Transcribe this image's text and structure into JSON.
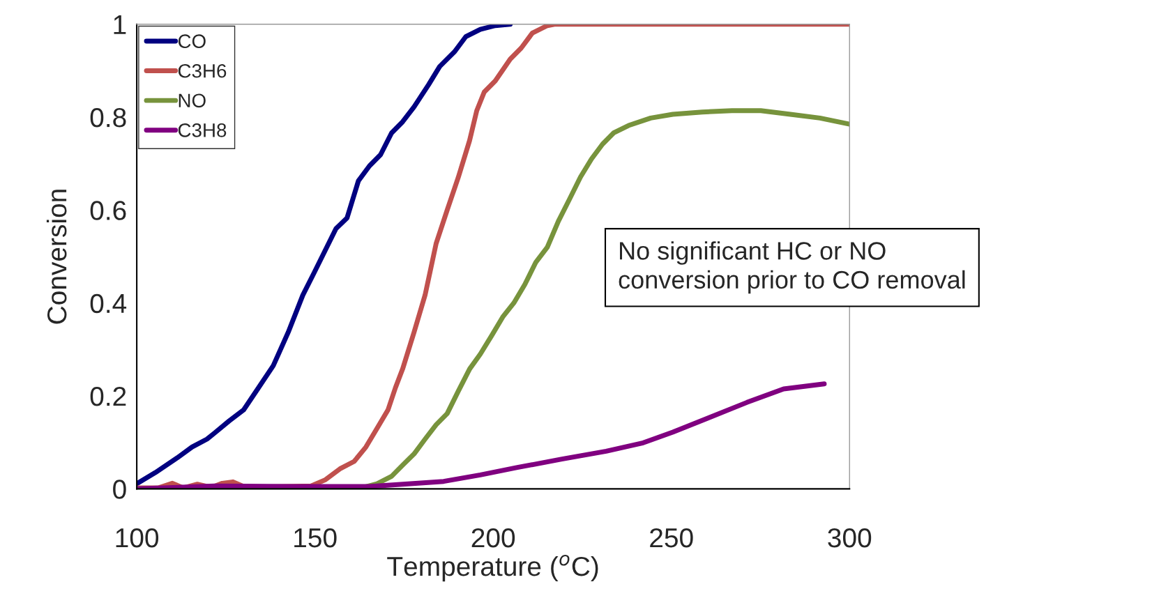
{
  "chart_data": {
    "type": "line",
    "xlabel": "Temperature ($^{o}$C)",
    "ylabel": "Conversion",
    "xlim": [
      100,
      300
    ],
    "xticks": [
      100,
      150,
      200,
      250,
      300
    ],
    "ylim": [
      0,
      1
    ],
    "yticks": [
      0,
      0.2,
      0.4,
      0.6,
      0.8,
      1
    ],
    "grid": false,
    "legend": "top left",
    "line_style": "solid",
    "annotations": [
      "No significant HC or NO\nconversion prior to CO removal"
    ],
    "series": [
      {
        "name": "CO",
        "color": "#000080",
        "x": [
          100,
          105.2,
          111.4,
          115.5,
          119.7,
          121.8,
          125.9,
          130,
          134.2,
          138.3,
          142.5,
          146.6,
          149.7,
          152.8,
          155.9,
          159,
          162.2,
          165.3,
          168.4,
          171.5,
          174.6,
          177.8,
          181.9,
          185,
          189.2,
          192.3,
          196.4,
          200.6,
          204.8
        ],
        "values": [
          0.011,
          0.035,
          0.067,
          0.09,
          0.107,
          0.12,
          0.146,
          0.17,
          0.218,
          0.265,
          0.337,
          0.417,
          0.464,
          0.512,
          0.56,
          0.583,
          0.663,
          0.695,
          0.719,
          0.766,
          0.79,
          0.822,
          0.87,
          0.909,
          0.941,
          0.973,
          0.989,
          0.997,
          1
        ]
      },
      {
        "name": "C3H6",
        "color": "#c0504d",
        "x": [
          100,
          106,
          110,
          113,
          117,
          121,
          124,
          127,
          130,
          135,
          148.8,
          152.8,
          157,
          161,
          164.3,
          167.4,
          170.5,
          172.6,
          174.6,
          177.8,
          180.9,
          184,
          187.1,
          190.2,
          193.4,
          195.4,
          197.5,
          200.6,
          204.8,
          207.9,
          211,
          215.2,
          217.2,
          300
        ],
        "values": [
          0.002,
          0.002,
          0.012,
          0.002,
          0.01,
          0.003,
          0.012,
          0.015,
          0.005,
          0.004,
          0.006,
          0.019,
          0.043,
          0.059,
          0.09,
          0.13,
          0.17,
          0.218,
          0.258,
          0.337,
          0.417,
          0.528,
          0.6,
          0.67,
          0.75,
          0.814,
          0.854,
          0.878,
          0.925,
          0.949,
          0.981,
          0.997,
          1,
          1
        ]
      },
      {
        "name": "NO",
        "color": "#77933c",
        "x": [
          100,
          162,
          167.4,
          171.5,
          174.6,
          177.8,
          180.9,
          184,
          187.1,
          190.2,
          193.4,
          196.4,
          199.6,
          202.7,
          205.8,
          208.9,
          212,
          215.2,
          218.3,
          221.4,
          224.5,
          227.6,
          230.7,
          233.8,
          238,
          244.2,
          250.4,
          258.7,
          267,
          275.1,
          283.4,
          291.7,
          300
        ],
        "values": [
          0,
          0,
          0.011,
          0.027,
          0.051,
          0.075,
          0.107,
          0.138,
          0.162,
          0.21,
          0.258,
          0.29,
          0.33,
          0.37,
          0.4,
          0.44,
          0.488,
          0.52,
          0.576,
          0.623,
          0.671,
          0.71,
          0.742,
          0.766,
          0.782,
          0.798,
          0.806,
          0.811,
          0.814,
          0.814,
          0.806,
          0.798,
          0.785
        ]
      },
      {
        "name": "C3H8",
        "color": "#800080",
        "x": [
          100,
          121.8,
          144.6,
          165.3,
          186.1,
          196.4,
          206.8,
          219.3,
          231.7,
          242.1,
          250.4,
          260.8,
          271.2,
          281.5,
          292.9
        ],
        "values": [
          0,
          0.006,
          0.005,
          0.005,
          0.016,
          0.03,
          0.046,
          0.064,
          0.081,
          0.099,
          0.122,
          0.154,
          0.186,
          0.215,
          0.226
        ]
      }
    ]
  }
}
